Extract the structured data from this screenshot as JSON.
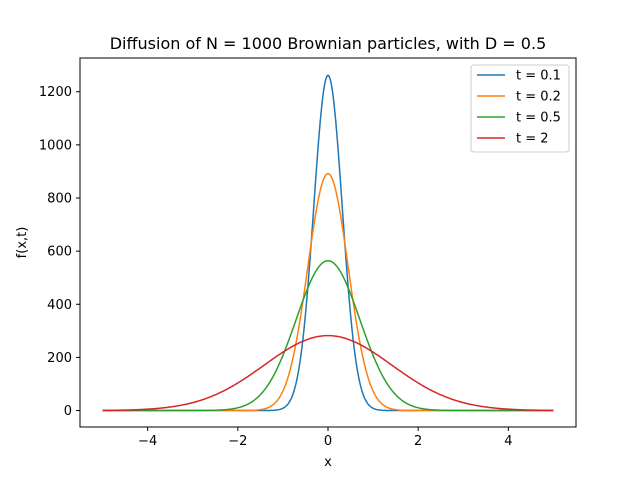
{
  "chart_data": {
    "type": "line",
    "title": "Diffusion of N = 1000 Brownian particles, with D = 0.5",
    "xlabel": "x",
    "ylabel": "f(x,t)",
    "xlim": [
      -5.5,
      5.5
    ],
    "ylim": [
      -62,
      1327
    ],
    "x_range": [
      -5,
      5
    ],
    "xticks": [
      -4,
      -2,
      0,
      2,
      4
    ],
    "xtick_labels": [
      "−4",
      "−2",
      "0",
      "2",
      "4"
    ],
    "yticks": [
      0,
      200,
      400,
      600,
      800,
      1000,
      1200
    ],
    "ytick_labels": [
      "0",
      "200",
      "400",
      "600",
      "800",
      "1000",
      "1200"
    ],
    "grid": false,
    "legend_position": "top-right",
    "N": 1000,
    "D": 0.5,
    "series": [
      {
        "name": "t = 0.1",
        "t": 0.1,
        "color": "#1f77b4",
        "peak": 1262
      },
      {
        "name": "t = 0.2",
        "t": 0.2,
        "color": "#ff7f0e",
        "peak": 892
      },
      {
        "name": "t = 0.5",
        "t": 0.5,
        "color": "#2ca02c",
        "peak": 564
      },
      {
        "name": "t = 2",
        "t": 2,
        "color": "#d62728",
        "peak": 282
      }
    ]
  }
}
